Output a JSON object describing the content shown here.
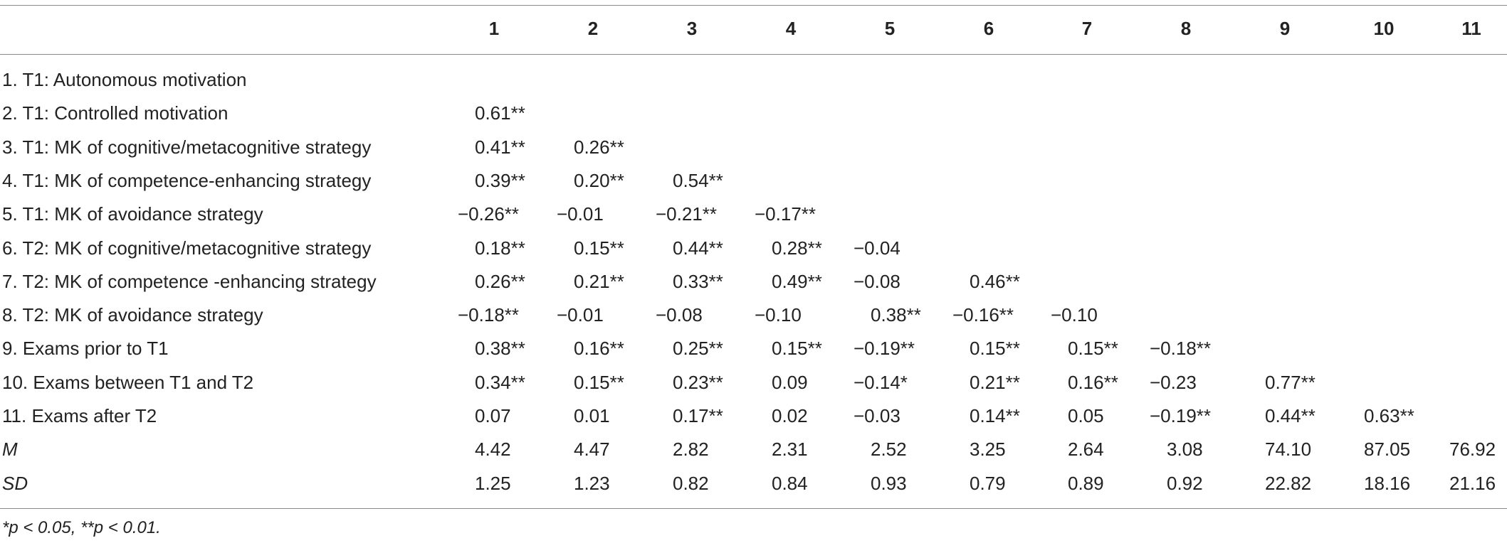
{
  "table": {
    "columns": [
      "1",
      "2",
      "3",
      "4",
      "5",
      "6",
      "7",
      "8",
      "9",
      "10",
      "11"
    ],
    "rows": [
      {
        "label": "1. T1: Autonomous motivation",
        "cells": []
      },
      {
        "label": "2. T1: Controlled motivation",
        "cells": [
          "0.61**"
        ]
      },
      {
        "label": "3. T1: MK of cognitive/metacognitive strategy",
        "cells": [
          "0.41**",
          "0.26**"
        ]
      },
      {
        "label": "4. T1: MK of competence-enhancing strategy",
        "cells": [
          "0.39**",
          "0.20**",
          "0.54**"
        ]
      },
      {
        "label": "5. T1: MK of avoidance strategy",
        "cells": [
          "−0.26**",
          "−0.01",
          "−0.21**",
          "−0.17**"
        ]
      },
      {
        "label": "6. T2: MK of cognitive/metacognitive strategy",
        "cells": [
          "0.18**",
          "0.15**",
          "0.44**",
          "0.28**",
          "−0.04"
        ]
      },
      {
        "label": "7. T2: MK of competence -enhancing strategy",
        "cells": [
          "0.26**",
          "0.21**",
          "0.33**",
          "0.49**",
          "−0.08",
          "0.46**"
        ]
      },
      {
        "label": "8. T2: MK of avoidance strategy",
        "cells": [
          "−0.18**",
          "−0.01",
          "−0.08",
          "−0.10",
          "0.38**",
          "−0.16**",
          "−0.10"
        ]
      },
      {
        "label": "9. Exams prior to T1",
        "cells": [
          "0.38**",
          "0.16**",
          "0.25**",
          "0.15**",
          "−0.19**",
          "0.15**",
          "0.15**",
          "−0.18**"
        ]
      },
      {
        "label": "10. Exams between T1 and T2",
        "cells": [
          "0.34**",
          "0.15**",
          "0.23**",
          "0.09",
          "−0.14*",
          "0.21**",
          "0.16**",
          "−0.23",
          "0.77**"
        ]
      },
      {
        "label": "11. Exams after T2",
        "cells": [
          "0.07",
          "0.01",
          "0.17**",
          "0.02",
          "−0.03",
          "0.14**",
          "0.05",
          "−0.19**",
          "0.44**",
          "0.63**"
        ]
      },
      {
        "label": "M",
        "cells": [
          "4.42",
          "4.47",
          "2.82",
          "2.31",
          "2.52",
          "3.25",
          "2.64",
          "3.08",
          "74.10",
          "87.05",
          "76.92"
        ]
      },
      {
        "label": "SD",
        "cells": [
          "1.25",
          "1.23",
          "0.82",
          "0.84",
          "0.93",
          "0.79",
          "0.89",
          "0.92",
          "22.82",
          "18.16",
          "21.16"
        ]
      }
    ]
  },
  "footnote": "*p < 0.05, **p < 0.01."
}
